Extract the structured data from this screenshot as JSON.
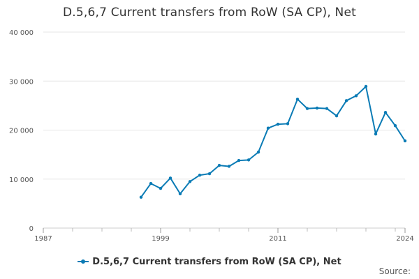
{
  "chart_data": {
    "type": "line",
    "title": "D.5,6,7 Current transfers from RoW (SA CP), Net",
    "xlabel": "",
    "ylabel": "",
    "xlim": [
      1987,
      2024
    ],
    "ylim": [
      0,
      40000
    ],
    "x_ticks": [
      1987,
      1999,
      2011,
      2024
    ],
    "x_tick_labels": [
      "1987",
      "1999",
      "2011",
      "2024"
    ],
    "y_ticks": [
      0,
      10000,
      20000,
      30000,
      40000
    ],
    "y_tick_labels": [
      "0",
      "10 000",
      "20 000",
      "30 000",
      "40 000"
    ],
    "grid": true,
    "legend_position": "bottom",
    "series": [
      {
        "name": "D.5,6,7 Current transfers from RoW (SA CP), Net",
        "color": "#0a7bb5",
        "x": [
          1997,
          1998,
          1999,
          2000,
          2001,
          2002,
          2003,
          2004,
          2005,
          2006,
          2007,
          2008,
          2009,
          2010,
          2011,
          2012,
          2013,
          2014,
          2015,
          2016,
          2017,
          2018,
          2019,
          2020,
          2021,
          2022,
          2023,
          2024
        ],
        "y": [
          6300,
          9100,
          8100,
          10200,
          7000,
          9500,
          10800,
          11100,
          12800,
          12600,
          13800,
          13900,
          15500,
          20400,
          21200,
          21300,
          26300,
          24400,
          24500,
          24400,
          22900,
          26000,
          27000,
          28900,
          19200,
          23600,
          20900,
          17800
        ]
      }
    ]
  },
  "source_label": "Source:"
}
